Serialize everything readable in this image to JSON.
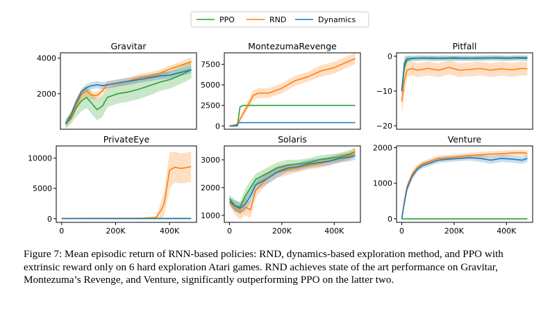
{
  "legend": [
    {
      "name": "PPO",
      "color": "#2ca02c"
    },
    {
      "name": "RND",
      "color": "#ff7f0e"
    },
    {
      "name": "Dynamics",
      "color": "#1f77b4"
    }
  ],
  "caption": "Figure 7: Mean episodic return of RNN-based policies: RND, dynamics-based exploration method, and PPO with extrinsic reward only on 6 hard exploration Atari games. RND achieves state of the art performance on Gravitar, Montezuma’s Revenge, and Venture, significantly outperforming PPO on the latter two.",
  "chart_data": [
    {
      "type": "line",
      "title": "Gravitar",
      "xlabel": "",
      "ylabel": "",
      "xlim": [
        -20000,
        500000
      ],
      "ylim": [
        0,
        4300
      ],
      "xticks": [],
      "xticklabels": [],
      "yticks": [
        2000,
        4000
      ],
      "yticklabels": [
        "2000",
        "4000"
      ],
      "series": [
        {
          "name": "PPO",
          "x": [
            0,
            20000,
            40000,
            60000,
            80000,
            100000,
            120000,
            140000,
            160000,
            200000,
            240000,
            280000,
            320000,
            360000,
            400000,
            440000,
            480000
          ],
          "y": [
            300,
            600,
            1200,
            1600,
            1800,
            1450,
            1100,
            1300,
            1800,
            2000,
            2100,
            2250,
            2450,
            2650,
            2800,
            3050,
            3350
          ],
          "band": [
            300,
            300,
            500,
            600,
            600,
            600,
            600,
            600,
            550,
            550,
            550,
            550,
            550,
            500,
            500,
            500,
            500
          ]
        },
        {
          "name": "RND",
          "x": [
            0,
            20000,
            40000,
            60000,
            80000,
            100000,
            120000,
            140000,
            160000,
            200000,
            240000,
            280000,
            320000,
            360000,
            400000,
            440000,
            480000
          ],
          "y": [
            300,
            700,
            1300,
            1950,
            2150,
            1900,
            1900,
            2150,
            2500,
            2600,
            2700,
            2900,
            3000,
            3150,
            3400,
            3600,
            3800
          ],
          "band": [
            200,
            250,
            250,
            250,
            250,
            250,
            200,
            200,
            200,
            200,
            200,
            200,
            200,
            200,
            200,
            200,
            250
          ]
        },
        {
          "name": "Dynamics",
          "x": [
            0,
            20000,
            40000,
            60000,
            80000,
            100000,
            120000,
            140000,
            160000,
            200000,
            240000,
            280000,
            320000,
            360000,
            400000,
            440000,
            480000
          ],
          "y": [
            300,
            800,
            1500,
            2100,
            2350,
            2450,
            2500,
            2450,
            2500,
            2600,
            2700,
            2800,
            2900,
            3000,
            3050,
            3200,
            3350
          ],
          "band": [
            150,
            200,
            200,
            200,
            200,
            200,
            200,
            200,
            200,
            200,
            200,
            200,
            200,
            200,
            200,
            200,
            200
          ]
        }
      ]
    },
    {
      "type": "line",
      "title": "MontezumaRevenge",
      "xlabel": "",
      "ylabel": "",
      "xlim": [
        -20000,
        500000
      ],
      "ylim": [
        -400,
        8900
      ],
      "xticks": [],
      "xticklabels": [],
      "yticks": [
        0,
        2500,
        5000,
        7500
      ],
      "yticklabels": [
        "0",
        "2500",
        "5000",
        "7500"
      ],
      "series": [
        {
          "name": "PPO",
          "x": [
            0,
            30000,
            40000,
            50000,
            100000,
            200000,
            300000,
            400000,
            480000
          ],
          "y": [
            0,
            0,
            2300,
            2500,
            2500,
            2500,
            2500,
            2500,
            2500
          ],
          "band": [
            0,
            0,
            100,
            0,
            0,
            0,
            0,
            0,
            0
          ]
        },
        {
          "name": "RND",
          "x": [
            0,
            30000,
            50000,
            70000,
            90000,
            110000,
            150000,
            200000,
            250000,
            300000,
            350000,
            400000,
            450000,
            480000
          ],
          "y": [
            0,
            200,
            1400,
            2500,
            3700,
            4000,
            4000,
            4600,
            5500,
            6000,
            6700,
            7100,
            7800,
            8200
          ],
          "band": [
            0,
            150,
            400,
            500,
            600,
            600,
            600,
            600,
            600,
            600,
            700,
            700,
            700,
            700
          ]
        },
        {
          "name": "Dynamics",
          "x": [
            0,
            25000,
            35000,
            50000,
            100000,
            200000,
            300000,
            400000,
            480000
          ],
          "y": [
            0,
            0,
            400,
            400,
            400,
            400,
            400,
            400,
            400
          ],
          "band": [
            0,
            0,
            50,
            0,
            0,
            0,
            0,
            0,
            0
          ]
        }
      ]
    },
    {
      "type": "line",
      "title": "Pitfall",
      "xlabel": "",
      "ylabel": "",
      "xlim": [
        -20000,
        500000
      ],
      "ylim": [
        -21,
        1
      ],
      "xticks": [],
      "xticklabels": [],
      "yticks": [
        0,
        -10,
        -20
      ],
      "yticklabels": [
        "0",
        "−10",
        "−20"
      ],
      "series": [
        {
          "name": "PPO",
          "x": [
            0,
            10000,
            20000,
            40000,
            80000,
            120000,
            160000,
            200000,
            240000,
            280000,
            320000,
            360000,
            400000,
            440000,
            480000
          ],
          "y": [
            -10,
            -3,
            -1,
            -0.6,
            -0.5,
            -0.5,
            -0.6,
            -0.4,
            -0.6,
            -0.5,
            -0.5,
            -0.4,
            -0.5,
            -0.4,
            -0.4
          ],
          "band": [
            2,
            2,
            1,
            0.5,
            0.5,
            0.5,
            0.5,
            0.5,
            0.5,
            0.5,
            0.5,
            0.5,
            0.5,
            0.5,
            0.5
          ]
        },
        {
          "name": "RND",
          "x": [
            0,
            10000,
            20000,
            40000,
            60000,
            100000,
            140000,
            180000,
            220000,
            260000,
            300000,
            340000,
            380000,
            420000,
            460000,
            480000
          ],
          "y": [
            -13,
            -7,
            -4,
            -3.5,
            -4,
            -3.5,
            -4,
            -3.2,
            -4,
            -3.8,
            -3.5,
            -4,
            -3.6,
            -3.9,
            -3.5,
            -3.6
          ],
          "band": [
            4,
            4,
            2,
            2,
            2,
            2,
            2,
            2,
            2,
            2,
            2,
            2,
            2,
            2,
            2,
            2
          ]
        },
        {
          "name": "Dynamics",
          "x": [
            0,
            10000,
            20000,
            40000,
            80000,
            120000,
            160000,
            200000,
            240000,
            280000,
            320000,
            360000,
            400000,
            440000,
            480000
          ],
          "y": [
            -10,
            -2,
            -0.8,
            -0.6,
            -0.5,
            -0.6,
            -0.5,
            -0.6,
            -0.5,
            -0.6,
            -0.5,
            -0.5,
            -0.6,
            -0.5,
            -0.6
          ],
          "band": [
            2,
            2,
            1,
            0.8,
            0.8,
            0.8,
            0.8,
            0.8,
            0.8,
            0.8,
            0.8,
            0.8,
            0.8,
            0.8,
            0.8
          ]
        }
      ]
    },
    {
      "type": "line",
      "title": "PrivateEye",
      "xlabel": "",
      "ylabel": "",
      "xlim": [
        -20000,
        500000
      ],
      "ylim": [
        -600,
        12000
      ],
      "xticks": [
        0,
        200000,
        400000
      ],
      "xticklabels": [
        "0",
        "200K",
        "400K"
      ],
      "yticks": [
        0,
        5000,
        10000
      ],
      "yticklabels": [
        "0",
        "5000",
        "10000"
      ],
      "series": [
        {
          "name": "PPO",
          "x": [
            0,
            100000,
            200000,
            300000,
            400000,
            480000
          ],
          "y": [
            50,
            50,
            50,
            50,
            50,
            50
          ],
          "band": [
            50,
            50,
            50,
            50,
            50,
            50
          ]
        },
        {
          "name": "RND",
          "x": [
            0,
            100000,
            200000,
            300000,
            350000,
            370000,
            380000,
            400000,
            420000,
            440000,
            460000,
            480000
          ],
          "y": [
            50,
            60,
            80,
            100,
            200,
            1500,
            2500,
            8000,
            8500,
            8300,
            8400,
            8600
          ],
          "band": [
            0,
            0,
            50,
            100,
            200,
            1500,
            2000,
            3000,
            2500,
            2500,
            2500,
            2500
          ]
        },
        {
          "name": "Dynamics",
          "x": [
            0,
            100000,
            200000,
            300000,
            400000,
            480000
          ],
          "y": [
            20,
            20,
            20,
            20,
            20,
            20
          ],
          "band": [
            20,
            20,
            20,
            20,
            20,
            20
          ]
        }
      ]
    },
    {
      "type": "line",
      "title": "Solaris",
      "xlabel": "",
      "ylabel": "",
      "xlim": [
        -20000,
        500000
      ],
      "ylim": [
        750,
        3500
      ],
      "xticks": [
        0,
        200000,
        400000
      ],
      "xticklabels": [
        "0",
        "200K",
        "400K"
      ],
      "yticks": [
        1000,
        2000,
        3000
      ],
      "yticklabels": [
        "1000",
        "2000",
        "3000"
      ],
      "series": [
        {
          "name": "PPO",
          "x": [
            0,
            20000,
            40000,
            60000,
            80000,
            100000,
            140000,
            180000,
            220000,
            260000,
            300000,
            340000,
            380000,
            420000,
            460000,
            480000
          ],
          "y": [
            1600,
            1350,
            1300,
            1700,
            2000,
            2300,
            2500,
            2700,
            2800,
            2850,
            2900,
            3000,
            3050,
            3100,
            3200,
            3300
          ],
          "band": [
            150,
            200,
            200,
            250,
            250,
            200,
            200,
            200,
            200,
            150,
            150,
            150,
            150,
            150,
            150,
            150
          ]
        },
        {
          "name": "RND",
          "x": [
            0,
            20000,
            40000,
            60000,
            80000,
            100000,
            140000,
            180000,
            220000,
            260000,
            300000,
            340000,
            380000,
            420000,
            460000,
            480000
          ],
          "y": [
            1500,
            1250,
            1100,
            1300,
            1200,
            1900,
            2300,
            2550,
            2650,
            2700,
            2800,
            2850,
            2950,
            3050,
            3150,
            3300
          ],
          "band": [
            150,
            200,
            250,
            300,
            300,
            250,
            200,
            200,
            200,
            150,
            150,
            150,
            150,
            150,
            150,
            150
          ]
        },
        {
          "name": "Dynamics",
          "x": [
            0,
            20000,
            40000,
            60000,
            80000,
            100000,
            140000,
            180000,
            220000,
            260000,
            300000,
            340000,
            380000,
            420000,
            460000,
            480000
          ],
          "y": [
            1500,
            1350,
            1250,
            1400,
            1700,
            2100,
            2300,
            2550,
            2700,
            2750,
            2850,
            2900,
            2950,
            3050,
            3100,
            3150
          ],
          "band": [
            150,
            200,
            200,
            250,
            250,
            200,
            200,
            200,
            150,
            150,
            150,
            150,
            150,
            150,
            150,
            150
          ]
        }
      ]
    },
    {
      "type": "line",
      "title": "Venture",
      "xlabel": "",
      "ylabel": "",
      "xlim": [
        -20000,
        500000
      ],
      "ylim": [
        -100,
        2050
      ],
      "xticks": [
        0,
        200000,
        400000
      ],
      "xticklabels": [
        "0",
        "200K",
        "400K"
      ],
      "yticks": [
        0,
        1000,
        2000
      ],
      "yticklabels": [
        "0",
        "1000",
        "2000"
      ],
      "series": [
        {
          "name": "PPO",
          "x": [
            0,
            100000,
            200000,
            300000,
            400000,
            480000
          ],
          "y": [
            0,
            0,
            0,
            0,
            0,
            0
          ],
          "band": [
            0,
            0,
            0,
            0,
            0,
            0
          ]
        },
        {
          "name": "RND",
          "x": [
            0,
            10000,
            20000,
            40000,
            60000,
            80000,
            100000,
            140000,
            180000,
            220000,
            260000,
            300000,
            340000,
            380000,
            420000,
            460000,
            480000
          ],
          "y": [
            0,
            500,
            900,
            1250,
            1450,
            1550,
            1600,
            1700,
            1720,
            1750,
            1780,
            1800,
            1820,
            1830,
            1850,
            1860,
            1840
          ],
          "band": [
            0,
            100,
            100,
            100,
            80,
            80,
            80,
            80,
            80,
            80,
            80,
            80,
            80,
            80,
            80,
            80,
            80
          ]
        },
        {
          "name": "Dynamics",
          "x": [
            0,
            10000,
            20000,
            40000,
            60000,
            80000,
            100000,
            140000,
            180000,
            220000,
            260000,
            300000,
            340000,
            380000,
            420000,
            460000,
            480000
          ],
          "y": [
            0,
            450,
            850,
            1200,
            1400,
            1500,
            1550,
            1650,
            1680,
            1700,
            1720,
            1700,
            1650,
            1700,
            1680,
            1650,
            1700
          ],
          "band": [
            0,
            100,
            100,
            100,
            80,
            80,
            80,
            80,
            80,
            80,
            80,
            100,
            100,
            100,
            100,
            100,
            100
          ]
        }
      ]
    }
  ]
}
